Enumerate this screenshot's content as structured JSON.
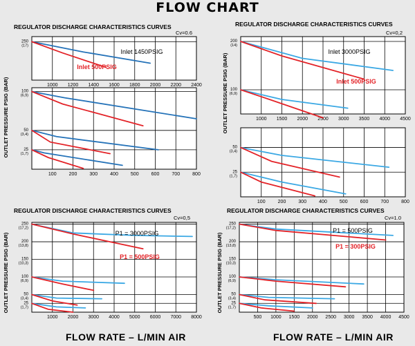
{
  "page": {
    "title": "FLOW CHART",
    "footer_left": "FLOW RATE – L/MIN AIR",
    "footer_right": "FLOW RATE – L/MIN AIR"
  },
  "colors": {
    "red": "#e32227",
    "blue_dark": "#2472b8",
    "blue_light": "#3aa8e4",
    "grid": "#000000"
  },
  "chart_data": [
    {
      "id": "cv06",
      "type": "line",
      "title": "REGULATOR DISCHARGE CHARACTERISTICS CURVES",
      "cv_label": "Cv=0.6",
      "ylabel": "OUTLET PRESSURE PSIG (BAR)",
      "xlabel": "FLOW RATE – L/MIN AIR",
      "grid": true,
      "legend": [
        {
          "text": "Inlet 1450PSIG",
          "color": "#000000"
        },
        {
          "text": "Inlet 500PSIG",
          "color": "#e32227"
        }
      ],
      "panels": [
        {
          "xlim": [
            800,
            2400
          ],
          "x_ticks": [
            1000,
            1200,
            1400,
            1600,
            1800,
            2000,
            2200,
            2400
          ],
          "ylim": [
            175,
            260
          ],
          "y_ticks": [
            {
              "value": 250,
              "label": "250",
              "sub": "(17)"
            }
          ],
          "series": [
            {
              "name": "Inlet 1450PSIG",
              "color": "#2472b8",
              "points": [
                [
                  800,
                  250
                ],
                [
                  1300,
                  230
                ],
                [
                  1950,
                  208
                ]
              ]
            },
            {
              "name": "Inlet 500PSIG",
              "color": "#e32227",
              "points": [
                [
                  800,
                  250
                ],
                [
                  1100,
                  228
                ],
                [
                  1520,
                  200
                ]
              ]
            }
          ]
        },
        {
          "xlim": [
            0,
            800
          ],
          "x_ticks": [
            100,
            200,
            300,
            400,
            500,
            600,
            700,
            800
          ],
          "ylim": [
            0,
            105
          ],
          "y_ticks": [
            {
              "value": 100,
              "label": "100",
              "sub": "(6,9)"
            },
            {
              "value": 50,
              "label": "50",
              "sub": "(3,4)"
            },
            {
              "value": 25,
              "label": "25",
              "sub": "(1,7)"
            }
          ],
          "series": [
            {
              "name": "100 PSIG set, Inlet 1450PSIG",
              "color": "#2472b8",
              "points": [
                [
                  0,
                  100
                ],
                [
                  160,
                  92
                ],
                [
                  800,
                  65
                ]
              ]
            },
            {
              "name": "100 PSIG set, Inlet 500PSIG",
              "color": "#e32227",
              "points": [
                [
                  0,
                  100
                ],
                [
                  150,
                  84
                ],
                [
                  540,
                  56
                ]
              ]
            },
            {
              "name": "50 PSIG set, Inlet 1450PSIG",
              "color": "#2472b8",
              "points": [
                [
                  0,
                  50
                ],
                [
                  120,
                  42
                ],
                [
                  615,
                  25
                ]
              ]
            },
            {
              "name": "50 PSIG set, Inlet 500PSIG",
              "color": "#e32227",
              "points": [
                [
                  0,
                  50
                ],
                [
                  90,
                  35
                ],
                [
                  380,
                  20
                ]
              ]
            },
            {
              "name": "25 PSIG set, Inlet 1450PSIG",
              "color": "#2472b8",
              "points": [
                [
                  0,
                  25
                ],
                [
                  60,
                  21
                ],
                [
                  440,
                  5
                ]
              ]
            },
            {
              "name": "25 PSIG set, Inlet 500PSIG",
              "color": "#e32227",
              "points": [
                [
                  0,
                  25
                ],
                [
                  80,
                  15
                ],
                [
                  250,
                  1
                ]
              ]
            }
          ]
        }
      ]
    },
    {
      "id": "cv02",
      "type": "line",
      "title": "REGULATOR DISCHARGE CHARACTERISTICS CURVES",
      "cv_label": "Cv=0,2",
      "ylabel": "OUTLET PRESSURE PSIG (BAR)",
      "xlabel": "FLOW RATE – L/MIN AIR",
      "grid": true,
      "legend": [
        {
          "text": "Inlet 3000PSIG",
          "color": "#000000"
        },
        {
          "text": "Inlet 500PSIG",
          "color": "#e32227"
        }
      ],
      "panels": [
        {
          "xlim": [
            500,
            4500
          ],
          "x_ticks": [
            1000,
            1500,
            2000,
            2500,
            3000,
            3500,
            4000,
            4500
          ],
          "ylim": [
            50,
            210
          ],
          "y_ticks": [
            {
              "value": 200,
              "label": "200",
              "sub": "(14)"
            },
            {
              "value": 100,
              "label": "100",
              "sub": "(6,9)"
            }
          ],
          "series": [
            {
              "name": "200 PSIG set, Inlet 3000PSIG",
              "color": "#3aa8e4",
              "points": [
                [
                  500,
                  200
                ],
                [
                  2000,
                  165
                ],
                [
                  4200,
                  140
                ]
              ]
            },
            {
              "name": "200 PSIG set, Inlet 500PSIG",
              "color": "#e32227",
              "points": [
                [
                  500,
                  200
                ],
                [
                  1500,
                  170
                ],
                [
                  3500,
                  122
                ]
              ]
            },
            {
              "name": "100 PSIG set, Inlet 3000PSIG",
              "color": "#3aa8e4",
              "points": [
                [
                  500,
                  100
                ],
                [
                  1500,
                  80
                ],
                [
                  3100,
                  62
                ]
              ]
            },
            {
              "name": "100 PSIG set, Inlet 500PSIG",
              "color": "#e32227",
              "points": [
                [
                  500,
                  100
                ],
                [
                  1200,
                  80
                ],
                [
                  2500,
                  42
                ]
              ]
            }
          ]
        },
        {
          "xlim": [
            0,
            800
          ],
          "x_ticks": [
            100,
            200,
            300,
            400,
            500,
            600,
            700,
            800
          ],
          "ylim": [
            0,
            70
          ],
          "y_ticks": [
            {
              "value": 50,
              "label": "50",
              "sub": "(3,4)"
            },
            {
              "value": 25,
              "label": "25",
              "sub": "(1,7)"
            }
          ],
          "series": [
            {
              "name": "50 PSIG set, Inlet 3000PSIG",
              "color": "#3aa8e4",
              "points": [
                [
                  0,
                  50
                ],
                [
                  200,
                  42
                ],
                [
                  720,
                  30
                ]
              ]
            },
            {
              "name": "50 PSIG set, Inlet 500PSIG",
              "color": "#e32227",
              "points": [
                [
                  0,
                  50
                ],
                [
                  150,
                  36
                ],
                [
                  480,
                  20
                ]
              ]
            },
            {
              "name": "25 PSIG set, Inlet 3000PSIG",
              "color": "#3aa8e4",
              "points": [
                [
                  0,
                  25
                ],
                [
                  200,
                  15
                ],
                [
                  510,
                  3
                ]
              ]
            },
            {
              "name": "25 PSIG set, Inlet 500PSIG",
              "color": "#e32227",
              "points": [
                [
                  0,
                  25
                ],
                [
                  100,
                  15
                ],
                [
                  360,
                  1
                ]
              ]
            }
          ]
        }
      ]
    },
    {
      "id": "cv05",
      "type": "line",
      "title": "REGULATOR DISCHARGE CHARACTERISTICS CURVES",
      "cv_label": "Cv=0,5",
      "ylabel": "OUTLET PRESSURE PSIG (BAR)",
      "xlabel": "FLOW RATE – L/MIN AIR",
      "grid": true,
      "legend": [
        {
          "text": "P1 = 3000PSIG",
          "color": "#000000"
        },
        {
          "text": "P1 = 500PSIG",
          "color": "#e32227"
        }
      ],
      "panels": [
        {
          "xlim": [
            0,
            8000
          ],
          "x_ticks": [
            1000,
            2000,
            3000,
            4000,
            5000,
            6000,
            7000,
            8000
          ],
          "ylim": [
            0,
            255
          ],
          "y_ticks": [
            {
              "value": 250,
              "label": "250",
              "sub": "(17,2)"
            },
            {
              "value": 200,
              "label": "200",
              "sub": "(13,8)"
            },
            {
              "value": 150,
              "label": "150",
              "sub": "(10,3)"
            },
            {
              "value": 100,
              "label": "100",
              "sub": "(6,9)"
            },
            {
              "value": 50,
              "label": "50",
              "sub": "(3,4)"
            },
            {
              "value": 25,
              "label": "25",
              "sub": "(1,7)"
            }
          ],
          "series": [
            {
              "name": "250 PSIG set, P1 = 3000PSIG",
              "color": "#3aa8e4",
              "points": [
                [
                  0,
                  250
                ],
                [
                  2000,
                  225
                ],
                [
                  5000,
                  218
                ],
                [
                  7800,
                  215
                ]
              ]
            },
            {
              "name": "250 PSIG set, P1 = 500PSIG",
              "color": "#e32227",
              "points": [
                [
                  0,
                  250
                ],
                [
                  2000,
                  222
                ],
                [
                  5400,
                  180
                ]
              ]
            },
            {
              "name": "100 PSIG set, P1 = 3000PSIG",
              "color": "#3aa8e4",
              "points": [
                [
                  0,
                  100
                ],
                [
                  1500,
                  88
                ],
                [
                  4500,
                  82
                ]
              ]
            },
            {
              "name": "100 PSIG set, P1 = 500PSIG",
              "color": "#e32227",
              "points": [
                [
                  0,
                  100
                ],
                [
                  1500,
                  80
                ],
                [
                  3000,
                  62
                ]
              ]
            },
            {
              "name": "50 PSIG set, P1 = 3000PSIG",
              "color": "#3aa8e4",
              "points": [
                [
                  0,
                  50
                ],
                [
                  1200,
                  40
                ],
                [
                  3400,
                  38
                ]
              ]
            },
            {
              "name": "50 PSIG set, P1 = 500PSIG",
              "color": "#e32227",
              "points": [
                [
                  0,
                  50
                ],
                [
                  1000,
                  32
                ],
                [
                  2200,
                  20
                ]
              ]
            },
            {
              "name": "25 PSIG set, P1 = 3000PSIG",
              "color": "#3aa8e4",
              "points": [
                [
                  0,
                  25
                ],
                [
                  1200,
                  15
                ],
                [
                  2600,
                  12
                ]
              ]
            },
            {
              "name": "25 PSIG set, P1 = 500PSIG",
              "color": "#e32227",
              "points": [
                [
                  0,
                  25
                ],
                [
                  800,
                  8
                ],
                [
                  2000,
                  0
                ]
              ]
            }
          ]
        }
      ]
    },
    {
      "id": "cv10",
      "type": "line",
      "title": "REGULATOR DISCHARGE CHARACTERISTICS CURVES",
      "cv_label": "Cv=1.0",
      "ylabel": "OUTLET PRESSURE PSIG (BAR)",
      "xlabel": "FLOW RATE – L/MIN AIR",
      "grid": true,
      "legend": [
        {
          "text": "P1 = 500PSIG",
          "color": "#000000"
        },
        {
          "text": "P1 = 300PSIG",
          "color": "#e32227"
        }
      ],
      "panels": [
        {
          "xlim": [
            0,
            4500
          ],
          "x_ticks": [
            500,
            1000,
            1500,
            2000,
            2500,
            3000,
            3500,
            4000,
            4500
          ],
          "ylim": [
            0,
            255
          ],
          "y_ticks": [
            {
              "value": 250,
              "label": "250",
              "sub": "(17,2)"
            },
            {
              "value": 200,
              "label": "200",
              "sub": "(13,8)"
            },
            {
              "value": 150,
              "label": "150",
              "sub": "(10,3)"
            },
            {
              "value": 100,
              "label": "100",
              "sub": "(6,9)"
            },
            {
              "value": 50,
              "label": "50",
              "sub": "(3,4)"
            },
            {
              "value": 25,
              "label": "25",
              "sub": "(1,7)"
            }
          ],
          "series": [
            {
              "name": "250 PSIG set, P1 = 500PSIG",
              "color": "#3aa8e4",
              "points": [
                [
                  0,
                  250
                ],
                [
                  1000,
                  236
                ],
                [
                  4200,
                  218
                ]
              ]
            },
            {
              "name": "250 PSIG set, P1 = 300PSIG",
              "color": "#e32227",
              "points": [
                [
                  0,
                  250
                ],
                [
                  1000,
                  232
                ],
                [
                  4000,
                  205
                ]
              ]
            },
            {
              "name": "100 PSIG set, P1 = 500PSIG",
              "color": "#3aa8e4",
              "points": [
                [
                  0,
                  100
                ],
                [
                  1000,
                  92
                ],
                [
                  3400,
                  80
                ]
              ]
            },
            {
              "name": "100 PSIG set, P1 = 300PSIG",
              "color": "#e32227",
              "points": [
                [
                  0,
                  100
                ],
                [
                  1000,
                  88
                ],
                [
                  2900,
                  72
                ]
              ]
            },
            {
              "name": "50 PSIG set, P1 = 500PSIG",
              "color": "#3aa8e4",
              "points": [
                [
                  0,
                  50
                ],
                [
                  800,
                  42
                ],
                [
                  2600,
                  38
                ]
              ]
            },
            {
              "name": "50 PSIG set, P1 = 300PSIG",
              "color": "#e32227",
              "points": [
                [
                  0,
                  50
                ],
                [
                  700,
                  35
                ],
                [
                  2100,
                  25
                ]
              ]
            },
            {
              "name": "25 PSIG set, P1 = 500PSIG",
              "color": "#3aa8e4",
              "points": [
                [
                  0,
                  25
                ],
                [
                  800,
                  18
                ],
                [
                  2000,
                  12
                ]
              ]
            },
            {
              "name": "25 PSIG set, P1 = 300PSIG",
              "color": "#e32227",
              "points": [
                [
                  0,
                  25
                ],
                [
                  600,
                  12
                ],
                [
                  1500,
                  3
                ]
              ]
            }
          ]
        }
      ]
    }
  ]
}
